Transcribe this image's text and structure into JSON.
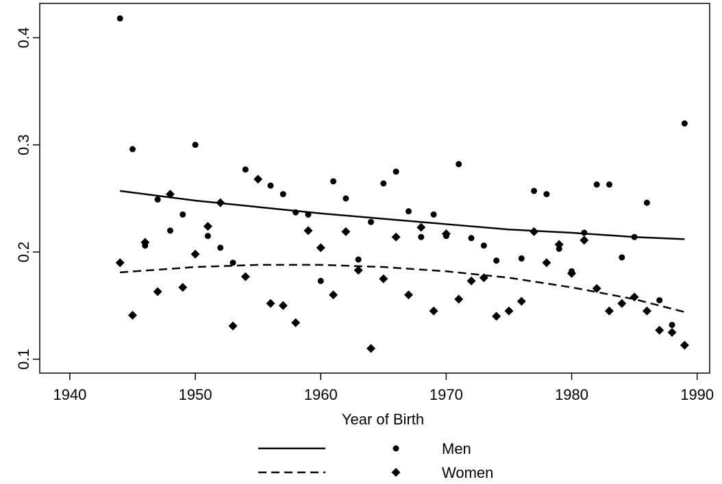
{
  "chart_data": {
    "type": "scatter",
    "x_label": "Year of Birth",
    "x": [
      1944,
      1945,
      1946,
      1947,
      1948,
      1949,
      1950,
      1951,
      1952,
      1953,
      1954,
      1955,
      1956,
      1957,
      1958,
      1959,
      1960,
      1961,
      1962,
      1963,
      1964,
      1965,
      1966,
      1967,
      1968,
      1969,
      1970,
      1971,
      1972,
      1973,
      1974,
      1975,
      1976,
      1977,
      1978,
      1979,
      1980,
      1981,
      1982,
      1983,
      1984,
      1985,
      1986,
      1987,
      1988,
      1989
    ],
    "xlim": [
      1937.6,
      1991
    ],
    "xticks": [
      1940,
      1950,
      1960,
      1970,
      1980,
      1990
    ],
    "ylim": [
      0.087,
      0.432
    ],
    "yticks": [
      0.1,
      0.2,
      0.3,
      0.4
    ],
    "grid": false,
    "legend_position": "bottom",
    "series": [
      {
        "name": "Men",
        "color": "#000000",
        "marker": "circle",
        "line_style": "solid",
        "values": [
          0.418,
          0.296,
          0.206,
          0.249,
          0.22,
          0.235,
          0.3,
          0.215,
          0.204,
          0.19,
          0.277,
          0.268,
          0.262,
          0.254,
          0.237,
          0.235,
          0.173,
          0.266,
          0.25,
          0.193,
          0.228,
          0.264,
          0.275,
          0.238,
          0.214,
          0.235,
          0.215,
          0.282,
          0.213,
          0.206,
          0.192,
          0.145,
          0.194,
          0.257,
          0.254,
          0.203,
          0.182,
          0.218,
          0.263,
          0.263,
          0.195,
          0.214,
          0.246,
          0.155,
          0.132,
          0.32
        ],
        "fit_x": [
          1944,
          1950,
          1955,
          1960,
          1965,
          1970,
          1975,
          1980,
          1985,
          1989
        ],
        "fit": [
          0.257,
          0.248,
          0.242,
          0.236,
          0.231,
          0.226,
          0.221,
          0.218,
          0.214,
          0.212
        ]
      },
      {
        "name": "Women",
        "color": "#000000",
        "marker": "diamond",
        "line_style": "dashed",
        "values": [
          0.19,
          0.141,
          0.209,
          0.163,
          0.254,
          0.167,
          0.198,
          0.224,
          0.246,
          0.131,
          0.177,
          0.268,
          0.152,
          0.15,
          0.134,
          0.22,
          0.204,
          0.16,
          0.219,
          0.183,
          0.11,
          0.175,
          0.214,
          0.16,
          0.223,
          0.145,
          0.217,
          0.156,
          0.173,
          0.176,
          0.14,
          0.145,
          0.154,
          0.219,
          0.19,
          0.207,
          0.18,
          0.211,
          0.166,
          0.145,
          0.152,
          0.158,
          0.145,
          0.127,
          0.125,
          0.113
        ],
        "fit_x": [
          1944,
          1950,
          1955,
          1960,
          1965,
          1970,
          1975,
          1980,
          1985,
          1989
        ],
        "fit": [
          0.181,
          0.186,
          0.188,
          0.188,
          0.186,
          0.182,
          0.176,
          0.167,
          0.156,
          0.144
        ]
      }
    ]
  }
}
